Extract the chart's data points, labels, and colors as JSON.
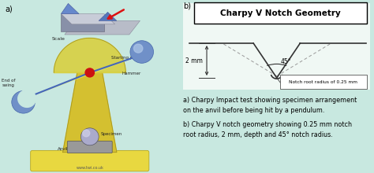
{
  "bg_color": "#c8e8e0",
  "left_bg": "#c8e8e0",
  "right_bg": "#d8ede8",
  "title_box_text": "Charpy V Notch Geometry",
  "label_a": "a)",
  "label_b": "b)",
  "depth_label": "2 mm",
  "angle_label": "45°",
  "notch_label": "Notch root radius of 0.25 mm",
  "caption_line1": "a) Charpy Impact test showing specimen arrangement",
  "caption_line2": "on the anvil before being hit by a pendulum.",
  "caption_line3": "b) Charpy V notch geometry showing 0.25 mm notch",
  "caption_line4": "root radius, 2 mm, depth and 45° notch radius.",
  "text_color": "#000000",
  "caption_fontsize": 5.8,
  "title_fontsize": 7.5,
  "label_fontsize": 7
}
